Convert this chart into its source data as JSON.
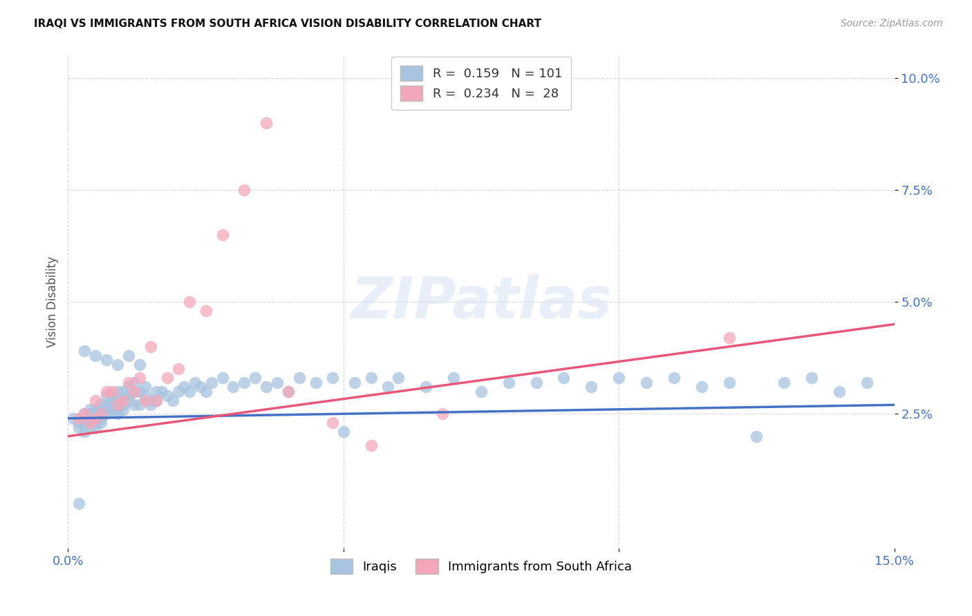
{
  "title": "IRAQI VS IMMIGRANTS FROM SOUTH AFRICA VISION DISABILITY CORRELATION CHART",
  "source": "Source: ZipAtlas.com",
  "ylabel": "Vision Disability",
  "xlim": [
    0.0,
    0.15
  ],
  "ylim": [
    -0.005,
    0.105
  ],
  "yticks": [
    0.025,
    0.05,
    0.075,
    0.1
  ],
  "yticklabels": [
    "2.5%",
    "5.0%",
    "7.5%",
    "10.0%"
  ],
  "xticks": [
    0.0,
    0.05,
    0.1,
    0.15
  ],
  "xticklabels": [
    "0.0%",
    "",
    "",
    "15.0%"
  ],
  "iraqi_R": 0.159,
  "iraqi_N": 101,
  "sa_R": 0.234,
  "sa_N": 28,
  "iraqi_color": "#a8c4e0",
  "sa_color": "#f4a7b9",
  "iraqi_line_color": "#4472c4",
  "sa_line_color": "#e8567a",
  "legend_label_iraqi": "Iraqis",
  "legend_label_sa": "Immigrants from South Africa",
  "iraqi_x": [
    0.001,
    0.002,
    0.002,
    0.003,
    0.003,
    0.003,
    0.003,
    0.004,
    0.004,
    0.004,
    0.004,
    0.005,
    0.005,
    0.005,
    0.005,
    0.005,
    0.006,
    0.006,
    0.006,
    0.006,
    0.006,
    0.007,
    0.007,
    0.007,
    0.007,
    0.008,
    0.008,
    0.008,
    0.008,
    0.009,
    0.009,
    0.009,
    0.009,
    0.009,
    0.01,
    0.01,
    0.01,
    0.01,
    0.011,
    0.011,
    0.011,
    0.012,
    0.012,
    0.012,
    0.013,
    0.013,
    0.014,
    0.014,
    0.015,
    0.015,
    0.016,
    0.016,
    0.017,
    0.018,
    0.019,
    0.02,
    0.021,
    0.022,
    0.023,
    0.024,
    0.025,
    0.026,
    0.028,
    0.03,
    0.032,
    0.034,
    0.036,
    0.038,
    0.04,
    0.042,
    0.045,
    0.048,
    0.05,
    0.052,
    0.055,
    0.058,
    0.06,
    0.065,
    0.07,
    0.075,
    0.08,
    0.085,
    0.09,
    0.095,
    0.1,
    0.105,
    0.11,
    0.115,
    0.12,
    0.125,
    0.13,
    0.135,
    0.14,
    0.145,
    0.003,
    0.005,
    0.007,
    0.009,
    0.011,
    0.013,
    0.002
  ],
  "iraqi_y": [
    0.024,
    0.023,
    0.022,
    0.025,
    0.024,
    0.023,
    0.021,
    0.025,
    0.026,
    0.024,
    0.022,
    0.025,
    0.024,
    0.026,
    0.023,
    0.022,
    0.026,
    0.025,
    0.027,
    0.024,
    0.023,
    0.027,
    0.026,
    0.025,
    0.029,
    0.028,
    0.027,
    0.026,
    0.029,
    0.027,
    0.028,
    0.03,
    0.026,
    0.025,
    0.028,
    0.03,
    0.027,
    0.026,
    0.029,
    0.031,
    0.028,
    0.03,
    0.027,
    0.032,
    0.027,
    0.03,
    0.029,
    0.031,
    0.028,
    0.027,
    0.03,
    0.028,
    0.03,
    0.029,
    0.028,
    0.03,
    0.031,
    0.03,
    0.032,
    0.031,
    0.03,
    0.032,
    0.033,
    0.031,
    0.032,
    0.033,
    0.031,
    0.032,
    0.03,
    0.033,
    0.032,
    0.033,
    0.021,
    0.032,
    0.033,
    0.031,
    0.033,
    0.031,
    0.033,
    0.03,
    0.032,
    0.032,
    0.033,
    0.031,
    0.033,
    0.032,
    0.033,
    0.031,
    0.032,
    0.02,
    0.032,
    0.033,
    0.03,
    0.032,
    0.039,
    0.038,
    0.037,
    0.036,
    0.038,
    0.036,
    0.005
  ],
  "sa_x": [
    0.002,
    0.003,
    0.004,
    0.005,
    0.005,
    0.006,
    0.007,
    0.008,
    0.009,
    0.01,
    0.011,
    0.012,
    0.013,
    0.014,
    0.015,
    0.016,
    0.018,
    0.02,
    0.022,
    0.025,
    0.028,
    0.032,
    0.036,
    0.04,
    0.048,
    0.055,
    0.068,
    0.12
  ],
  "sa_y": [
    0.024,
    0.025,
    0.023,
    0.028,
    0.024,
    0.025,
    0.03,
    0.03,
    0.027,
    0.028,
    0.032,
    0.03,
    0.033,
    0.028,
    0.04,
    0.028,
    0.033,
    0.035,
    0.05,
    0.048,
    0.065,
    0.075,
    0.09,
    0.03,
    0.023,
    0.018,
    0.025,
    0.042
  ],
  "iraqi_trend_x": [
    0.0,
    0.15
  ],
  "iraqi_trend_y": [
    0.024,
    0.027
  ],
  "sa_trend_x": [
    0.0,
    0.15
  ],
  "sa_trend_y": [
    0.02,
    0.045
  ]
}
